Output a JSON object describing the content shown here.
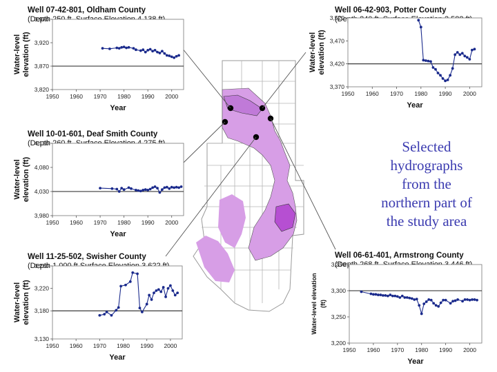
{
  "caption": {
    "lines": [
      "Selected",
      "hydrographs",
      "from the",
      "northern part of",
      "the study area"
    ],
    "color": "#3b3bb0"
  },
  "colors": {
    "series": "#1a2a8c",
    "map_fill": "#d79ee6",
    "map_dark": "#b64fd2",
    "map_outline": "#8f8f8f"
  },
  "chart_data": [
    {
      "type": "line",
      "title": "Well 07-42-801, Oldham County",
      "subtitle": "(Depth 250 ft, Surface Elevation 4,138 ft)",
      "ylabel_lines": [
        "Water-level",
        "elevation (ft)"
      ],
      "xlabel": "Year",
      "xlim": [
        1950,
        2005
      ],
      "xticks": [
        1950,
        1960,
        1970,
        1980,
        1990,
        2000
      ],
      "ylim": [
        3820,
        3970
      ],
      "yticks": [
        3820,
        3870,
        3920,
        3970
      ],
      "ytick_labels": [
        "3,820",
        "3,870",
        "3,920",
        "3,970"
      ],
      "ref_line": 3870,
      "series": [
        {
          "x": [
            1971,
            1974,
            1977,
            1978,
            1979,
            1980,
            1981,
            1982,
            1984,
            1985,
            1987,
            1988,
            1989,
            1990,
            1991,
            1992,
            1993,
            1994,
            1995,
            1996,
            1997,
            1998,
            1999,
            2000,
            2001,
            2002,
            2003
          ],
          "y": [
            3908,
            3907,
            3909,
            3908,
            3910,
            3911,
            3909,
            3910,
            3908,
            3905,
            3903,
            3905,
            3900,
            3904,
            3906,
            3902,
            3904,
            3900,
            3898,
            3902,
            3897,
            3893,
            3892,
            3890,
            3888,
            3891,
            3893
          ]
        }
      ]
    },
    {
      "type": "line",
      "title": "Well 06-42-903, Potter County",
      "subtitle": "(Depth 240 ft ,Surface Elevation 3,582 ft)",
      "ylabel_lines": [
        "Water-level",
        "elevation (ft)"
      ],
      "xlabel": "Year",
      "xlim": [
        1950,
        2005
      ],
      "xticks": [
        1950,
        1960,
        1970,
        1980,
        1990,
        2000
      ],
      "ylim": [
        3370,
        3520
      ],
      "yticks": [
        3370,
        3420,
        3470,
        3520
      ],
      "ytick_labels": [
        "3,370",
        "3,420",
        "3,470",
        "3,520"
      ],
      "ref_line": 3420,
      "series": [
        {
          "x": [
            1979,
            1980,
            1981,
            1982,
            1983,
            1984,
            1985,
            1986,
            1987,
            1988,
            1989,
            1990,
            1991,
            1992,
            1993,
            1994,
            1995,
            1996,
            1997,
            1998,
            1999,
            2000,
            2001,
            2002
          ],
          "y": [
            3515,
            3500,
            3428,
            3427,
            3426,
            3425,
            3412,
            3408,
            3400,
            3395,
            3388,
            3383,
            3385,
            3395,
            3410,
            3440,
            3445,
            3440,
            3443,
            3437,
            3434,
            3430,
            3450,
            3452
          ]
        }
      ]
    },
    {
      "type": "line",
      "title": "Well 10-01-601, Deaf Smith County",
      "subtitle": "(Depth 260 ft, Surface Elevation 4,275 ft)",
      "ylabel_lines": [
        "Water-level",
        "elevation (ft)"
      ],
      "xlabel": "Year",
      "xlim": [
        1950,
        2005
      ],
      "xticks": [
        1950,
        1960,
        1970,
        1980,
        1990,
        2000
      ],
      "ylim": [
        3980,
        4130
      ],
      "yticks": [
        3980,
        4030,
        4080,
        4130
      ],
      "ytick_labels": [
        "3,980",
        "4,030",
        "4,080",
        "4,130"
      ],
      "ref_line": 4030,
      "series": [
        {
          "x": [
            1970,
            1975,
            1977,
            1978,
            1979,
            1980,
            1982,
            1983,
            1985,
            1986,
            1987,
            1988,
            1989,
            1990,
            1991,
            1992,
            1993,
            1994,
            1995,
            1996,
            1997,
            1998,
            1999,
            2000,
            2001,
            2002,
            2003,
            2004
          ],
          "y": [
            4037,
            4036,
            4035,
            4030,
            4037,
            4034,
            4038,
            4036,
            4033,
            4032,
            4031,
            4033,
            4034,
            4033,
            4035,
            4038,
            4040,
            4037,
            4028,
            4034,
            4038,
            4039,
            4036,
            4039,
            4038,
            4039,
            4038,
            4040
          ]
        }
      ]
    },
    {
      "type": "line",
      "title": "Well 11-25-502, Swisher County",
      "subtitle": "(Depth 1,000 ft Surface Elevation 3,622 ft)",
      "ylabel_lines": [
        "Water-level",
        "elevation (ft)"
      ],
      "xlabel": "Year",
      "xlim": [
        1950,
        2005
      ],
      "xticks": [
        1950,
        1960,
        1970,
        1980,
        1990,
        2000
      ],
      "ylim": [
        3130,
        3260
      ],
      "yticks": [
        3130,
        3180,
        3220,
        3260
      ],
      "ytick_labels": [
        "3,130",
        "3,180",
        "3,220",
        "3,260"
      ],
      "ref_line": 3180,
      "series": [
        {
          "x": [
            1970,
            1972,
            1973,
            1975,
            1977,
            1978,
            1979,
            1981,
            1983,
            1984,
            1986,
            1987,
            1988,
            1990,
            1991,
            1992,
            1993,
            1994,
            1995,
            1996,
            1997,
            1998,
            1999,
            2000,
            2001,
            2002,
            2003
          ],
          "y": [
            3172,
            3174,
            3178,
            3172,
            3181,
            3186,
            3224,
            3226,
            3232,
            3248,
            3246,
            3185,
            3178,
            3192,
            3208,
            3200,
            3212,
            3216,
            3218,
            3214,
            3222,
            3205,
            3220,
            3225,
            3216,
            3208,
            3212
          ]
        }
      ]
    },
    {
      "type": "line",
      "title": "Well 06-61-401, Armstrong County",
      "subtitle": "(Depth 268 ft, Surface Elevation 3,446 ft)",
      "ylabel_lines": [
        "Water-level elevation",
        "(ft)"
      ],
      "xlabel": "Year",
      "xlim": [
        1950,
        2005
      ],
      "xticks": [
        1950,
        1960,
        1970,
        1980,
        1990,
        2000
      ],
      "ylim": [
        3200,
        3350
      ],
      "yticks": [
        3200,
        3250,
        3300,
        3350
      ],
      "ytick_labels": [
        "3,200",
        "3,250",
        "3,300",
        "3,350"
      ],
      "ref_line": 3300,
      "series": [
        {
          "x": [
            1955,
            1959,
            1960,
            1961,
            1962,
            1963,
            1964,
            1965,
            1966,
            1967,
            1968,
            1969,
            1970,
            1971,
            1972,
            1973,
            1974,
            1975,
            1976,
            1977,
            1978,
            1979,
            1980,
            1981,
            1982,
            1983,
            1984,
            1985,
            1986,
            1987,
            1988,
            1989,
            1990,
            1992,
            1993,
            1994,
            1995,
            1997,
            1998,
            1999,
            2000,
            2001,
            2002,
            2003
          ],
          "y": [
            3298,
            3294,
            3293,
            3293,
            3292,
            3292,
            3291,
            3291,
            3290,
            3292,
            3290,
            3290,
            3289,
            3287,
            3290,
            3287,
            3287,
            3286,
            3285,
            3283,
            3284,
            3272,
            3256,
            3275,
            3279,
            3283,
            3282,
            3276,
            3272,
            3270,
            3277,
            3282,
            3282,
            3276,
            3280,
            3281,
            3283,
            3280,
            3283,
            3283,
            3282,
            3283,
            3283,
            3282
          ]
        }
      ]
    }
  ]
}
